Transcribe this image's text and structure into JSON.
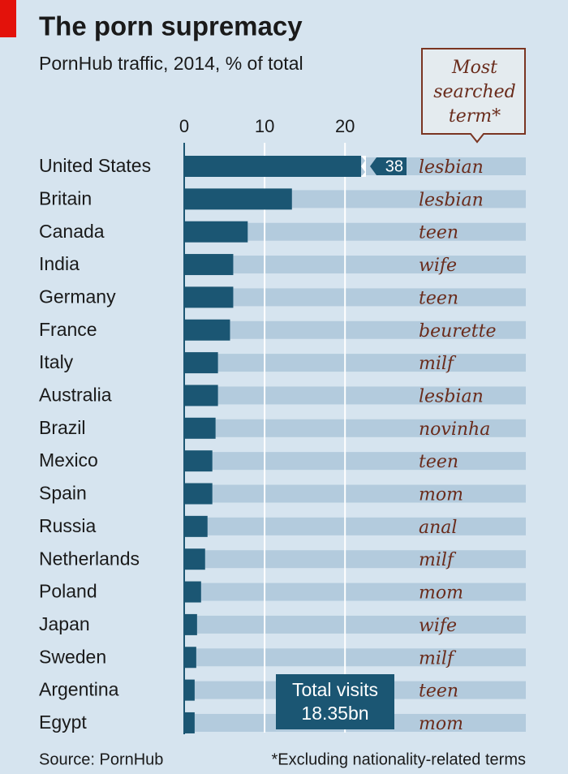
{
  "chart_data": {
    "type": "bar",
    "orientation": "horizontal",
    "title": "The porn supremacy",
    "subtitle": "PornHub traffic,  2014, % of total",
    "categories": [
      "United States",
      "Britain",
      "Canada",
      "India",
      "Germany",
      "France",
      "Italy",
      "Australia",
      "Brazil",
      "Mexico",
      "Spain",
      "Russia",
      "Netherlands",
      "Poland",
      "Japan",
      "Sweden",
      "Argentina",
      "Egypt"
    ],
    "values": [
      38,
      13.4,
      7.9,
      6.1,
      6.1,
      5.7,
      4.2,
      4.2,
      3.9,
      3.5,
      3.5,
      2.9,
      2.6,
      2.1,
      1.6,
      1.5,
      1.3,
      1.3
    ],
    "value_labels": [
      "38",
      null,
      null,
      null,
      null,
      null,
      null,
      null,
      null,
      null,
      null,
      null,
      null,
      null,
      null,
      null,
      null,
      null
    ],
    "color": "#1b5673",
    "xlim": [
      0,
      22
    ],
    "xticks": [
      0,
      10,
      20
    ],
    "grid": true,
    "terms_header": [
      "Most",
      "searched",
      "term*"
    ],
    "terms": [
      "lesbian",
      "lesbian",
      "teen",
      "wife",
      "teen",
      "beurette",
      "milf",
      "lesbian",
      "novinha",
      "teen",
      "mom",
      "anal",
      "milf",
      "mom",
      "wife",
      "milf",
      "teen",
      "mom"
    ],
    "annotation": [
      "Total visits",
      "18.35bn"
    ],
    "source": "Source: PornHub",
    "footnote": "*Excluding nationality-related terms"
  }
}
